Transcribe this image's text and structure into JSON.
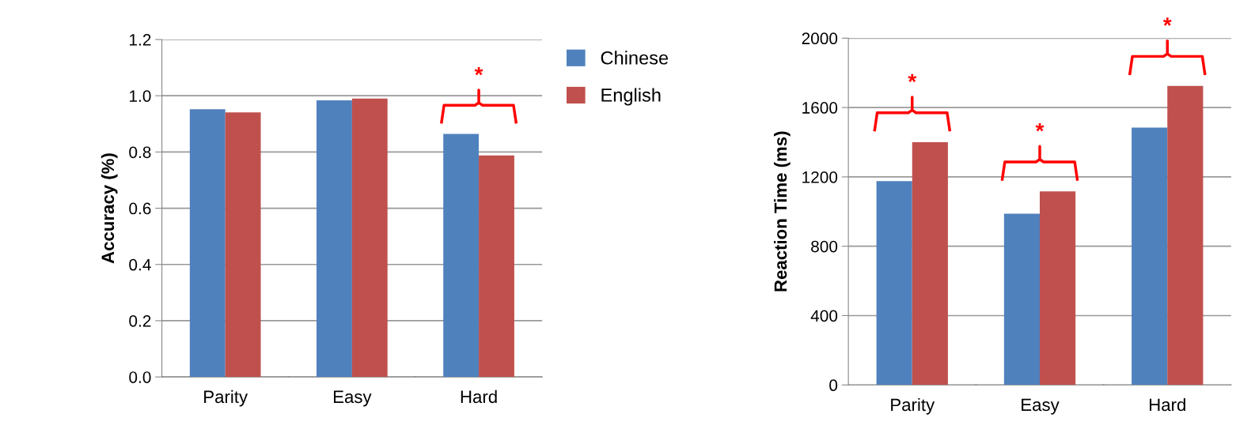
{
  "chart_data": [
    {
      "type": "bar",
      "ylabel": "Accuracy (%)",
      "categories": [
        "Parity",
        "Easy",
        "Hard"
      ],
      "series": [
        {
          "name": "Chinese",
          "color": "#4f81bd",
          "values": [
            0.952,
            0.984,
            0.864
          ]
        },
        {
          "name": "English",
          "color": "#c0504d",
          "values": [
            0.941,
            0.99,
            0.788
          ]
        }
      ],
      "ylim": [
        0,
        1.2
      ],
      "yticks": [
        {
          "value": 0,
          "label": "0.0"
        },
        0.2,
        0.4,
        0.6,
        0.8,
        {
          "value": 1,
          "label": "1.0"
        },
        1.2
      ],
      "grid": "y",
      "legend": "top right",
      "annotations": [
        "*"
      ]
    },
    {
      "type": "bar",
      "ylabel": "Reaction Time (ms)",
      "categories": [
        "Parity",
        "Easy",
        "Hard"
      ],
      "series": [
        {
          "color": "#4f81bd",
          "values": [
            1176,
            988,
            1484
          ]
        },
        {
          "color": "#c0504d",
          "values": [
            1400,
            1116,
            1725
          ]
        }
      ],
      "ylim": [
        0,
        2000
      ],
      "yticks": [
        0,
        400,
        800,
        1200,
        1600,
        2000
      ],
      "grid": "y",
      "annotations": [
        "*",
        "*",
        "*"
      ]
    }
  ]
}
